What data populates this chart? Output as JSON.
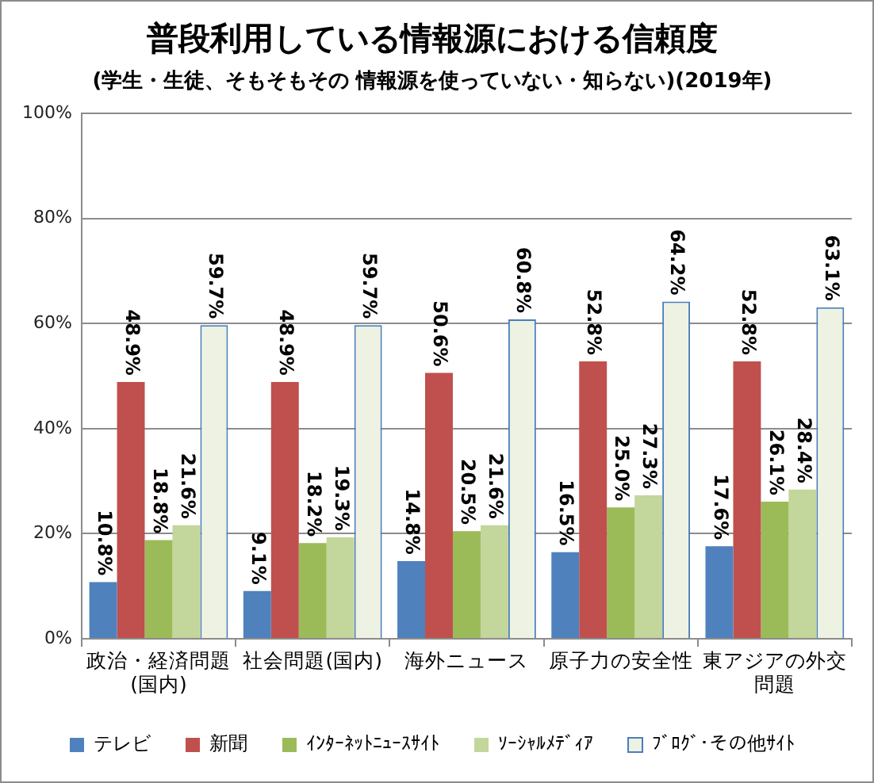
{
  "chart_data": {
    "type": "bar",
    "title": "普段利用している情報源における信頼度",
    "subtitle": "(学生・生徒、そもそもその 情報源を使っていない・知らない)(2019年)",
    "categories": [
      "政治・経済問題(国内)",
      "社会問題(国内)",
      "海外ニュース",
      "原子力の安全性",
      "東アジアの外交問題"
    ],
    "series": [
      {
        "name": "テレビ",
        "color": "#4f81bd",
        "values": [
          10.8,
          9.1,
          14.8,
          16.5,
          17.6
        ],
        "value_labels": [
          "10.8%",
          "9.1%",
          "14.8%",
          "16.5%",
          "17.6%"
        ]
      },
      {
        "name": "新聞",
        "color": "#c0504d",
        "values": [
          48.9,
          48.9,
          50.6,
          52.8,
          52.8
        ],
        "value_labels": [
          "48.9%",
          "48.9%",
          "50.6%",
          "52.8%",
          "52.8%"
        ]
      },
      {
        "name": "ｲﾝﾀｰﾈｯﾄﾆｭｰｽｻｲﾄ",
        "color": "#9bbb59",
        "values": [
          18.8,
          18.2,
          20.5,
          25.0,
          26.1
        ],
        "value_labels": [
          "18.8%",
          "18.2%",
          "20.5%",
          "25.0%",
          "26.1%"
        ]
      },
      {
        "name": "ｿｰｼｬﾙﾒﾃﾞｨｱ",
        "color": "#c3d69b",
        "values": [
          21.6,
          19.3,
          21.6,
          27.3,
          28.4
        ],
        "value_labels": [
          "21.6%",
          "19.3%",
          "21.6%",
          "27.3%",
          "28.4%"
        ]
      },
      {
        "name": "ﾌﾞﾛｸﾞ･その他ｻｲﾄ",
        "color": "#eef2e2",
        "values": [
          59.7,
          59.7,
          60.8,
          64.2,
          63.1
        ],
        "value_labels": [
          "59.7%",
          "59.7%",
          "60.8%",
          "64.2%",
          "63.1%"
        ]
      }
    ],
    "ylim": [
      0,
      100
    ],
    "yticks": [
      {
        "value": 0,
        "label": "0%"
      },
      {
        "value": 20,
        "label": "20%"
      },
      {
        "value": 40,
        "label": "40%"
      },
      {
        "value": 60,
        "label": "60%"
      },
      {
        "value": 80,
        "label": "80%"
      },
      {
        "value": 100,
        "label": "100%"
      }
    ],
    "grid": "y",
    "legend": "bottom"
  }
}
